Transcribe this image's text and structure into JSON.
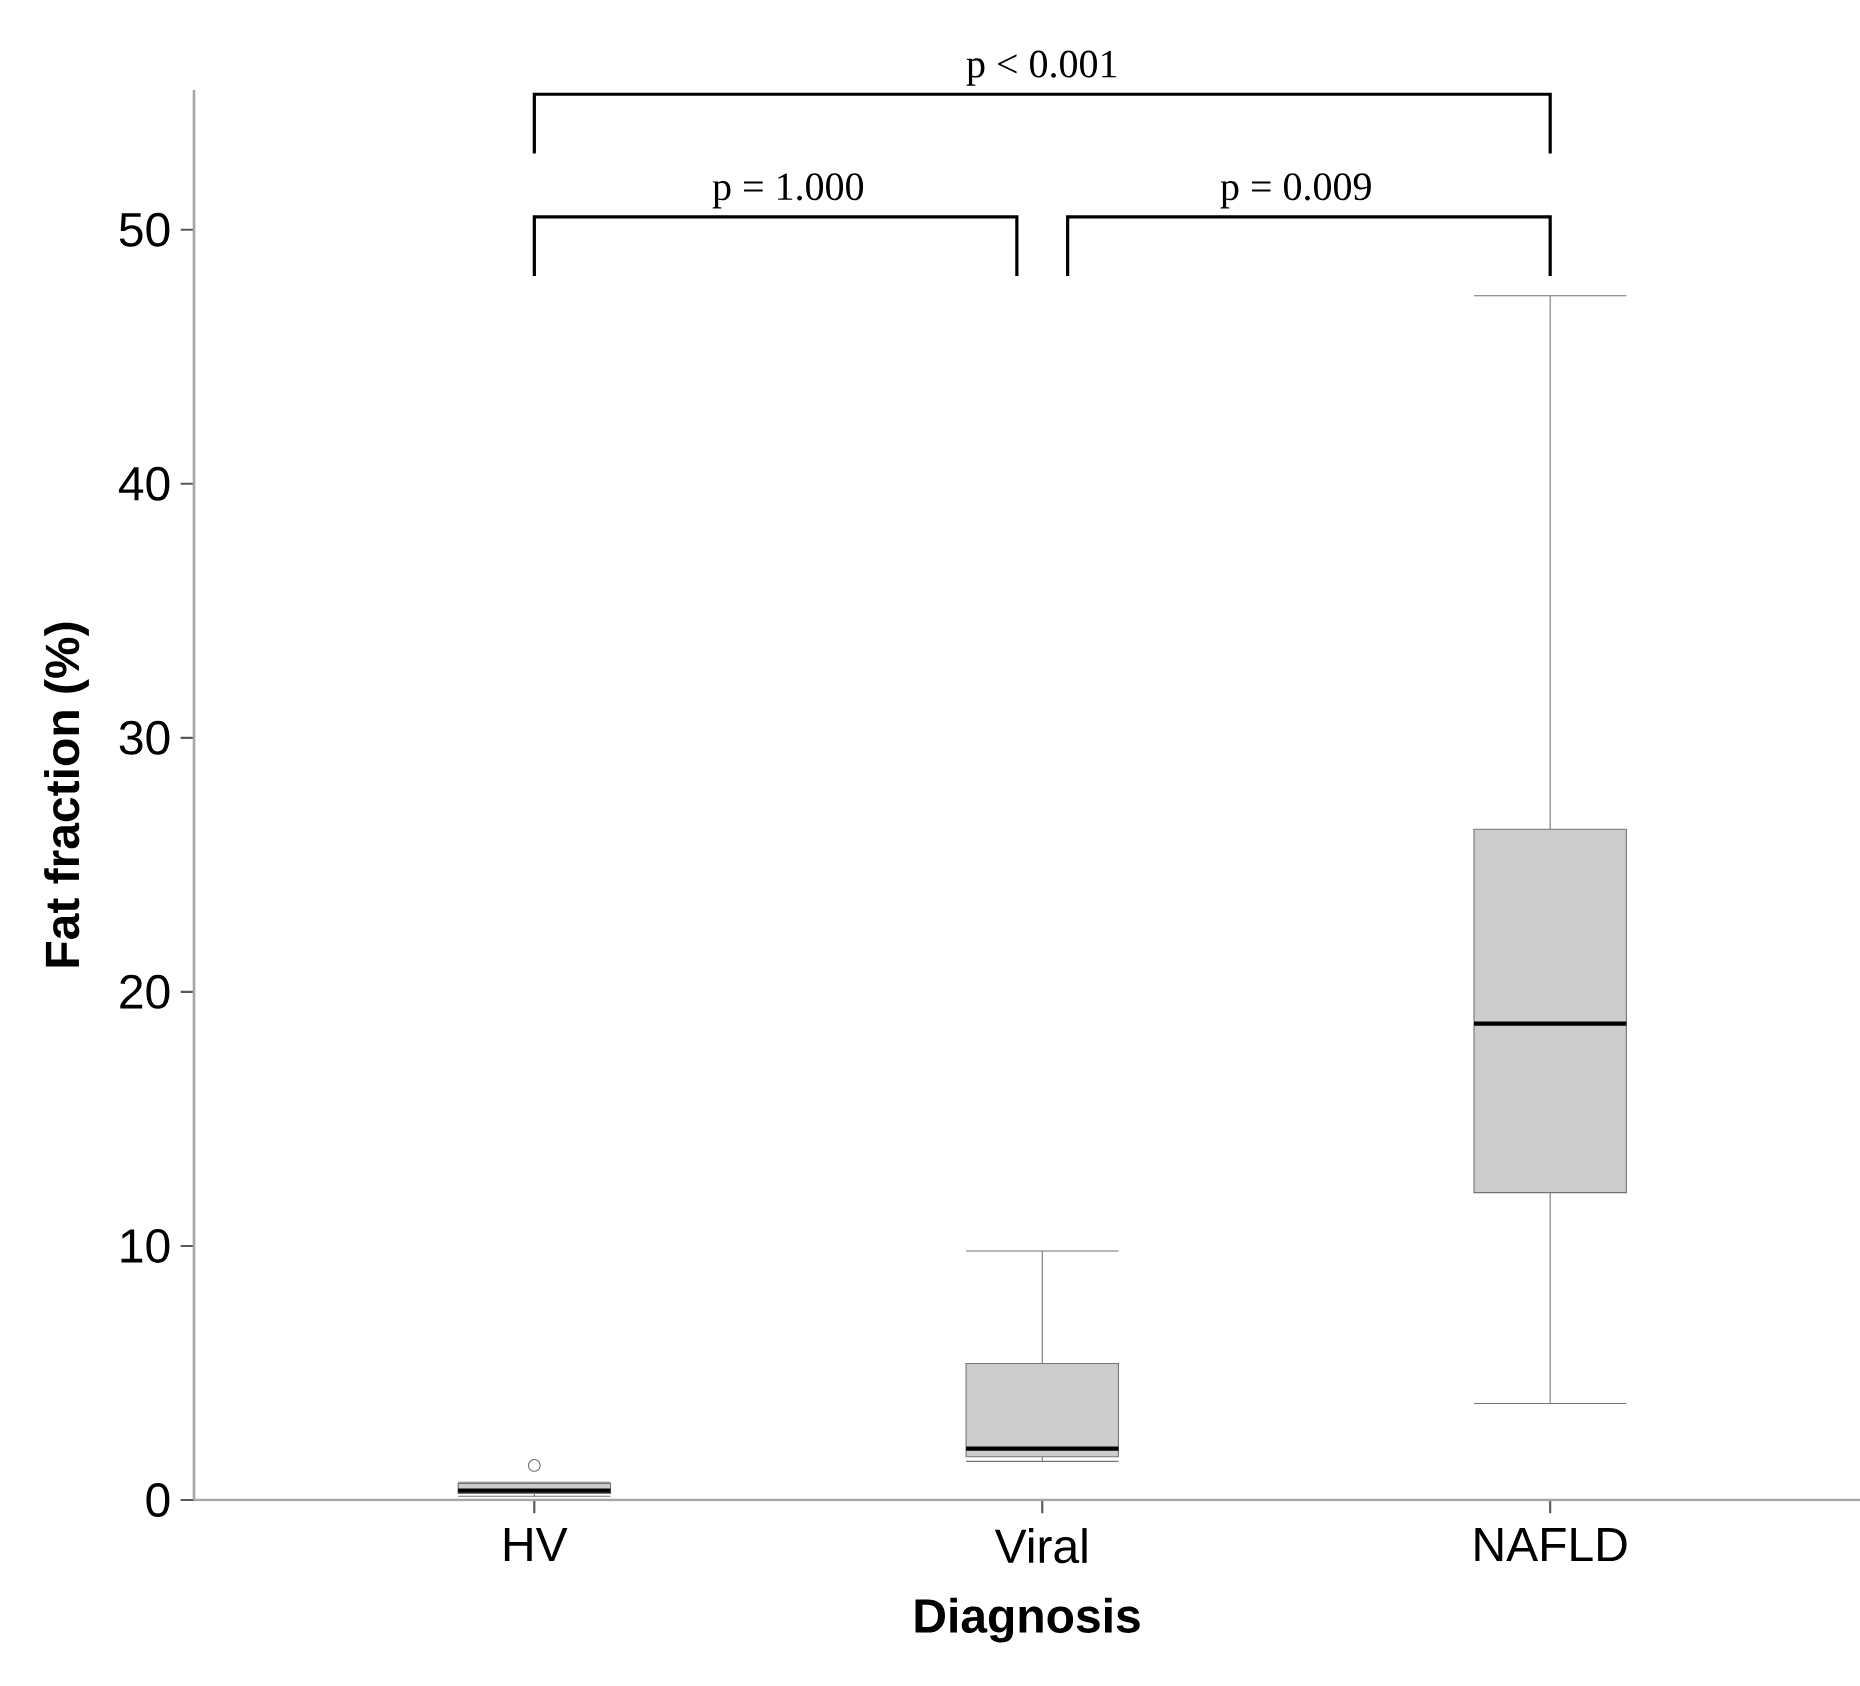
{
  "chart_data": {
    "type": "box",
    "categories": [
      "HV",
      "Viral",
      "NAFLD"
    ],
    "xlabel": "Diagnosis",
    "ylabel": "Fat fraction (%)",
    "ylim": [
      0,
      55.5
    ],
    "yticks": [
      0,
      10,
      20,
      30,
      40,
      50
    ],
    "color": "#cccccc",
    "boxes": [
      {
        "low": 0.15,
        "q1": 0.26,
        "median": 0.37,
        "q3": 0.65,
        "high": 0.7,
        "outliers": [
          1.36
        ]
      },
      {
        "low": 1.52,
        "q1": 1.7,
        "median": 2.02,
        "q3": 5.37,
        "high": 9.8
      },
      {
        "low": 3.8,
        "q1": 12.1,
        "median": 18.75,
        "q3": 26.4,
        "high": 47.4
      }
    ],
    "annotations": [
      "p < 0.001",
      "p = 1.000",
      "p = 0.009"
    ]
  }
}
